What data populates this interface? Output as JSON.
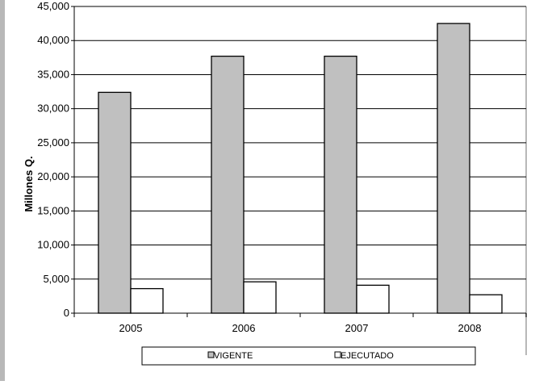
{
  "chart_data": {
    "type": "bar",
    "categories": [
      "2005",
      "2006",
      "2007",
      "2008"
    ],
    "series": [
      {
        "name": "VIGENTE",
        "values": [
          32400,
          37700,
          37700,
          42500
        ],
        "color": "#c0c0c0"
      },
      {
        "name": "EJECUTADO",
        "values": [
          3600,
          4600,
          4100,
          2700
        ],
        "color": "#ffffff"
      }
    ],
    "ylabel": "Millones Q.",
    "xlabel": "",
    "ylim": [
      0,
      45000
    ],
    "yticks": [
      0,
      5000,
      10000,
      15000,
      20000,
      25000,
      30000,
      35000,
      40000,
      45000
    ],
    "ytick_labels": [
      "0",
      "5,000",
      "10,000",
      "15,000",
      "20,000",
      "25,000",
      "30,000",
      "35,000",
      "40,000",
      "45,000"
    ],
    "grid": true,
    "legend_position": "bottom"
  }
}
